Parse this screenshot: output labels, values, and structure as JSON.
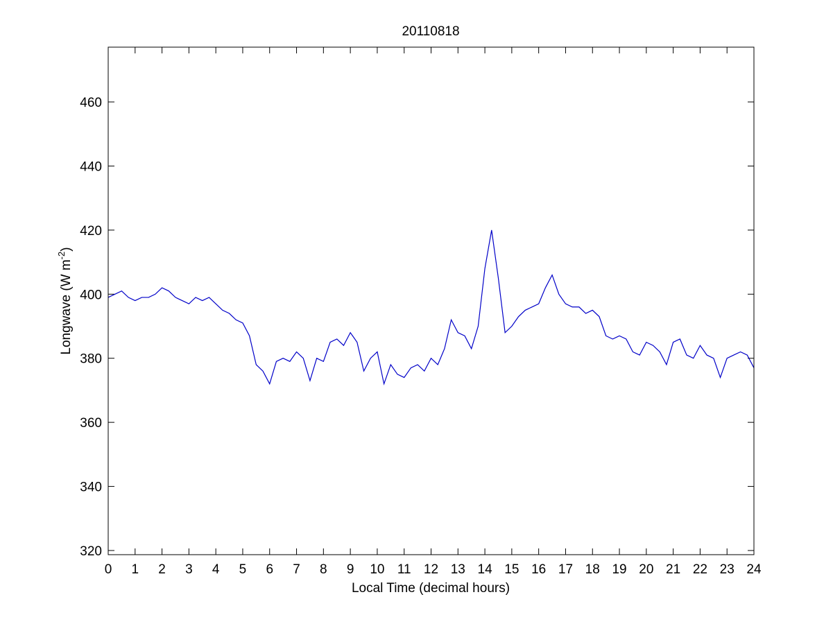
{
  "chart_data": {
    "type": "line",
    "title": "20110818",
    "xlabel": "Local Time (decimal hours)",
    "ylabel": [
      "Longwave (W m",
      "-2",
      ")"
    ],
    "x": [
      0,
      0.25,
      0.5,
      0.75,
      1,
      1.25,
      1.5,
      1.75,
      2,
      2.25,
      2.5,
      2.75,
      3,
      3.25,
      3.5,
      3.75,
      4,
      4.25,
      4.5,
      4.75,
      5,
      5.25,
      5.5,
      5.75,
      6,
      6.25,
      6.5,
      6.75,
      7,
      7.25,
      7.5,
      7.75,
      8,
      8.25,
      8.5,
      8.75,
      9,
      9.25,
      9.5,
      9.75,
      10,
      10.25,
      10.5,
      10.75,
      11,
      11.25,
      11.5,
      11.75,
      12,
      12.25,
      12.5,
      12.75,
      13,
      13.25,
      13.5,
      13.75,
      14,
      14.25,
      14.5,
      14.75,
      15,
      15.25,
      15.5,
      15.75,
      16,
      16.25,
      16.5,
      16.75,
      17,
      17.25,
      17.5,
      17.75,
      18,
      18.25,
      18.5,
      18.75,
      19,
      19.25,
      19.5,
      19.75,
      20,
      20.25,
      20.5,
      20.75,
      21,
      21.25,
      21.5,
      21.75,
      22,
      22.25,
      22.5,
      22.75,
      23,
      23.25,
      23.5,
      23.75,
      24
    ],
    "series": [
      {
        "name": "Longwave",
        "color": "#0000c8",
        "values": [
          399,
          400,
          401,
          399,
          398,
          399,
          399,
          400,
          402,
          401,
          399,
          398,
          397,
          399,
          398,
          399,
          397,
          395,
          394,
          392,
          391,
          387,
          378,
          376,
          372,
          379,
          380,
          379,
          382,
          380,
          373,
          380,
          379,
          385,
          386,
          384,
          388,
          385,
          376,
          380,
          382,
          372,
          378,
          375,
          374,
          377,
          378,
          376,
          380,
          378,
          383,
          392,
          388,
          387,
          383,
          390,
          408,
          420,
          405,
          388,
          390,
          393,
          395,
          396,
          397,
          402,
          406,
          400,
          397,
          396,
          396,
          394,
          395,
          393,
          387,
          386,
          387,
          386,
          382,
          381,
          385,
          384,
          382,
          378,
          385,
          386,
          381,
          380,
          384,
          381,
          380,
          374,
          380,
          381,
          382,
          381,
          377
        ]
      }
    ],
    "xlim": [
      0,
      24
    ],
    "xticks": [
      0,
      1,
      2,
      3,
      4,
      5,
      6,
      7,
      8,
      9,
      10,
      11,
      12,
      13,
      14,
      15,
      16,
      17,
      18,
      19,
      20,
      21,
      22,
      23,
      24
    ],
    "ylim": [
      318.7,
      477.1
    ],
    "yticks": [
      320,
      340,
      360,
      380,
      400,
      420,
      440,
      460
    ]
  }
}
